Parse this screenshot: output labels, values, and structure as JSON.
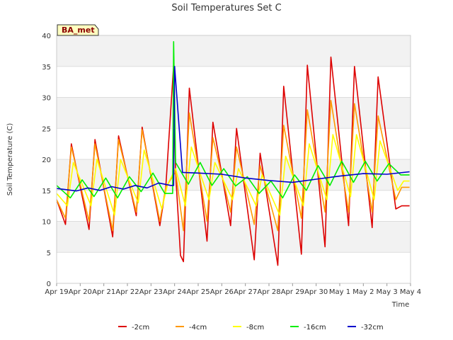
{
  "chart_data": {
    "type": "line",
    "title": "Soil Temperatures Set C",
    "xlabel": "Time",
    "ylabel": "Soil Temperature (C)",
    "badge": "BA_met",
    "ylim": [
      0,
      40
    ],
    "yticks": [
      0,
      5,
      10,
      15,
      20,
      25,
      30,
      35,
      40
    ],
    "xlim": [
      "2023-04-19",
      "2023-05-04"
    ],
    "xticks": [
      "Apr 19",
      "Apr 20",
      "Apr 21",
      "Apr 22",
      "Apr 23",
      "Apr 24",
      "Apr 25",
      "Apr 26",
      "Apr 27",
      "Apr 28",
      "Apr 29",
      "Apr 30",
      "May 1",
      "May 2",
      "May 3",
      "May 4"
    ],
    "grid": true,
    "legend_position": "bottom",
    "series": [
      {
        "name": "-2cm",
        "color": "#dd0000",
        "x": [
          "Apr 19 00:00",
          "Apr 19 09:00",
          "Apr 19 15:00",
          "Apr 20 09:00",
          "Apr 20 15:00",
          "Apr 21 09:00",
          "Apr 21 15:00",
          "Apr 22 09:00",
          "Apr 22 15:00",
          "Apr 23 09:00",
          "Apr 23 15:00",
          "Apr 23 23:00",
          "Apr 24 01:00",
          "Apr 24 06:00",
          "Apr 24 09:00",
          "Apr 24 15:00",
          "Apr 25 09:00",
          "Apr 25 15:00",
          "Apr 26 09:00",
          "Apr 26 15:00",
          "Apr 27 09:00",
          "Apr 27 15:00",
          "Apr 28 09:00",
          "Apr 28 15:00",
          "Apr 29 09:00",
          "Apr 29 15:00",
          "Apr 30 09:00",
          "Apr 30 15:00",
          "May 1 09:00",
          "May 1 15:00",
          "May 2 09:00",
          "May 2 15:00",
          "May 3 09:00",
          "May 3 15:00",
          "May 3 23:00"
        ],
        "y": [
          13.5,
          9.5,
          22.5,
          8.7,
          23.2,
          7.5,
          23.8,
          10.9,
          25.2,
          9.3,
          15.5,
          35.2,
          17.8,
          4.5,
          3.5,
          31.5,
          6.8,
          26.0,
          9.3,
          25.0,
          3.8,
          21.0,
          2.9,
          31.8,
          4.7,
          35.2,
          5.9,
          36.5,
          9.3,
          35.0,
          9.0,
          33.3,
          12.0,
          12.5,
          12.5
        ]
      },
      {
        "name": "-4cm",
        "color": "#ff9900",
        "x": [
          "Apr 19 00:00",
          "Apr 19 09:00",
          "Apr 19 15:00",
          "Apr 20 09:00",
          "Apr 20 15:00",
          "Apr 21 09:00",
          "Apr 21 15:00",
          "Apr 22 09:00",
          "Apr 22 15:00",
          "Apr 23 09:00",
          "Apr 23 15:00",
          "Apr 24 01:00",
          "Apr 24 09:00",
          "Apr 24 15:00",
          "Apr 25 09:00",
          "Apr 25 15:00",
          "Apr 26 09:00",
          "Apr 26 15:00",
          "Apr 27 09:00",
          "Apr 27 15:00",
          "Apr 28 09:00",
          "Apr 28 15:00",
          "Apr 29 09:00",
          "Apr 29 15:00",
          "Apr 30 09:00",
          "Apr 30 15:00",
          "May 1 09:00",
          "May 1 15:00",
          "May 2 09:00",
          "May 2 15:00",
          "May 3 09:00",
          "May 3 15:00",
          "May 3 23:00"
        ],
        "y": [
          13.5,
          10.5,
          22.0,
          10.0,
          22.5,
          8.5,
          23.2,
          11.5,
          24.8,
          10.0,
          15.5,
          18.0,
          8.5,
          27.5,
          10.0,
          23.5,
          11.5,
          22.0,
          9.5,
          19.0,
          8.5,
          25.5,
          10.5,
          28.0,
          11.5,
          29.5,
          11.5,
          29.0,
          11.5,
          27.0,
          13.5,
          15.5,
          15.5
        ]
      },
      {
        "name": "-8cm",
        "color": "#ffff00",
        "x": [
          "Apr 19 00:00",
          "Apr 19 11:00",
          "Apr 19 17:00",
          "Apr 20 11:00",
          "Apr 20 17:00",
          "Apr 21 11:00",
          "Apr 21 17:00",
          "Apr 22 11:00",
          "Apr 22 17:00",
          "Apr 23 11:00",
          "Apr 23 17:00",
          "Apr 24 01:00",
          "Apr 24 11:00",
          "Apr 24 17:00",
          "Apr 25 11:00",
          "Apr 25 17:00",
          "Apr 26 11:00",
          "Apr 26 17:00",
          "Apr 27 11:00",
          "Apr 27 17:00",
          "Apr 28 11:00",
          "Apr 28 17:00",
          "Apr 29 11:00",
          "Apr 29 17:00",
          "Apr 30 11:00",
          "Apr 30 17:00",
          "May 1 11:00",
          "May 1 17:00",
          "May 2 11:00",
          "May 2 17:00",
          "May 3 11:00",
          "May 3 17:00",
          "May 3 23:00"
        ],
        "y": [
          14.5,
          12.5,
          19.5,
          12.5,
          20.0,
          11.0,
          20.0,
          13.0,
          21.5,
          12.0,
          16.0,
          18.5,
          12.5,
          22.0,
          13.5,
          19.5,
          13.5,
          18.5,
          12.5,
          17.5,
          11.0,
          20.5,
          12.5,
          22.5,
          13.5,
          24.0,
          14.0,
          24.0,
          13.5,
          23.0,
          15.0,
          16.5,
          16.5
        ]
      },
      {
        "name": "-16cm",
        "color": "#00ee00",
        "x": [
          "Apr 19 00:00",
          "Apr 19 14:00",
          "Apr 20 02:00",
          "Apr 20 14:00",
          "Apr 21 02:00",
          "Apr 21 14:00",
          "Apr 22 02:00",
          "Apr 22 14:00",
          "Apr 23 02:00",
          "Apr 23 14:00",
          "Apr 23 22:00",
          "Apr 23 23:00",
          "Apr 24 01:00",
          "Apr 24 14:00",
          "Apr 25 02:00",
          "Apr 25 14:00",
          "Apr 26 02:00",
          "Apr 26 14:00",
          "Apr 27 02:00",
          "Apr 27 14:00",
          "Apr 28 02:00",
          "Apr 28 14:00",
          "Apr 29 02:00",
          "Apr 29 14:00",
          "Apr 30 02:00",
          "Apr 30 14:00",
          "May 1 02:00",
          "May 1 14:00",
          "May 2 02:00",
          "May 2 14:00",
          "May 3 02:00",
          "May 3 14:00",
          "May 3 23:00"
        ],
        "y": [
          15.8,
          13.8,
          16.7,
          14.0,
          17.0,
          13.8,
          17.2,
          14.8,
          17.8,
          14.5,
          14.5,
          39.0,
          19.5,
          16.0,
          19.5,
          15.8,
          18.5,
          15.7,
          17.2,
          14.5,
          16.5,
          13.8,
          17.5,
          15.0,
          19.0,
          15.8,
          19.7,
          16.3,
          19.7,
          16.5,
          19.3,
          17.5,
          17.5
        ]
      },
      {
        "name": "-32cm",
        "color": "#0000cc",
        "x": [
          "Apr 19 00:00",
          "Apr 19 20:00",
          "Apr 20 08:00",
          "Apr 20 20:00",
          "Apr 21 08:00",
          "Apr 21 20:00",
          "Apr 22 08:00",
          "Apr 22 20:00",
          "Apr 23 08:00",
          "Apr 23 20:00",
          "Apr 23 23:00",
          "Apr 24 00:00",
          "Apr 24 08:00",
          "Apr 25 00:00",
          "Apr 26 00:00",
          "Apr 27 00:00",
          "Apr 28 00:00",
          "Apr 29 00:00",
          "Apr 30 00:00",
          "May 1 00:00",
          "May 2 00:00",
          "May 3 00:00",
          "May 3 23:00"
        ],
        "y": [
          15.3,
          14.9,
          15.4,
          15.0,
          15.6,
          15.2,
          15.8,
          15.4,
          16.2,
          15.8,
          15.8,
          35.0,
          17.9,
          17.8,
          17.6,
          17.0,
          16.6,
          16.3,
          16.8,
          17.3,
          17.7,
          17.6,
          18.0
        ]
      }
    ]
  }
}
